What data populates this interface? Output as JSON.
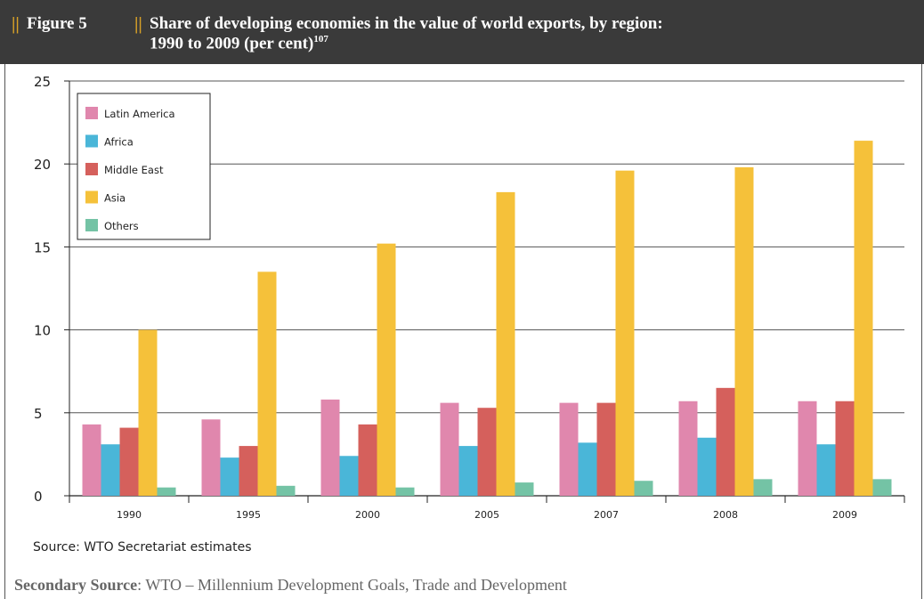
{
  "figure": {
    "marker": "||",
    "number": "Figure 5",
    "title_line1": "Share of developing economies in the value of world exports, by region:",
    "title_line2": "1990 to 2009 (per cent)",
    "footnote": "107"
  },
  "source_primary": "Source: WTO Secretariat estimates",
  "source_secondary": {
    "label": "Secondary Source",
    "text": ": WTO – Millennium Development Goals, Trade and Development"
  },
  "colors": {
    "header_bg": "#3a3a3a",
    "marker": "#d9a227",
    "latin_america": "#e087ad",
    "africa": "#4ab6d8",
    "middle_east": "#d5605c",
    "asia": "#f5c13a",
    "others": "#74c3a5"
  },
  "chart_data": {
    "type": "bar",
    "title": "",
    "xlabel": "",
    "ylabel": "",
    "ylim": [
      0,
      25
    ],
    "yticks": [
      0,
      5,
      10,
      15,
      20,
      25
    ],
    "grid": true,
    "legend_position": "top-left",
    "categories": [
      "1990",
      "1995",
      "2000",
      "2005",
      "2007",
      "2008",
      "2009"
    ],
    "series": [
      {
        "name": "Latin America",
        "color": "#e087ad",
        "values": [
          4.3,
          4.6,
          5.8,
          5.6,
          5.6,
          5.7,
          5.7
        ]
      },
      {
        "name": "Africa",
        "color": "#4ab6d8",
        "values": [
          3.1,
          2.3,
          2.4,
          3.0,
          3.2,
          3.5,
          3.1
        ]
      },
      {
        "name": "Middle East",
        "color": "#d5605c",
        "values": [
          4.1,
          3.0,
          4.3,
          5.3,
          5.6,
          6.5,
          5.7
        ]
      },
      {
        "name": "Asia",
        "color": "#f5c13a",
        "values": [
          10.0,
          13.5,
          15.2,
          18.3,
          19.6,
          19.8,
          21.4
        ]
      },
      {
        "name": "Others",
        "color": "#74c3a5",
        "values": [
          0.5,
          0.6,
          0.5,
          0.8,
          0.9,
          1.0,
          1.0
        ]
      }
    ]
  }
}
